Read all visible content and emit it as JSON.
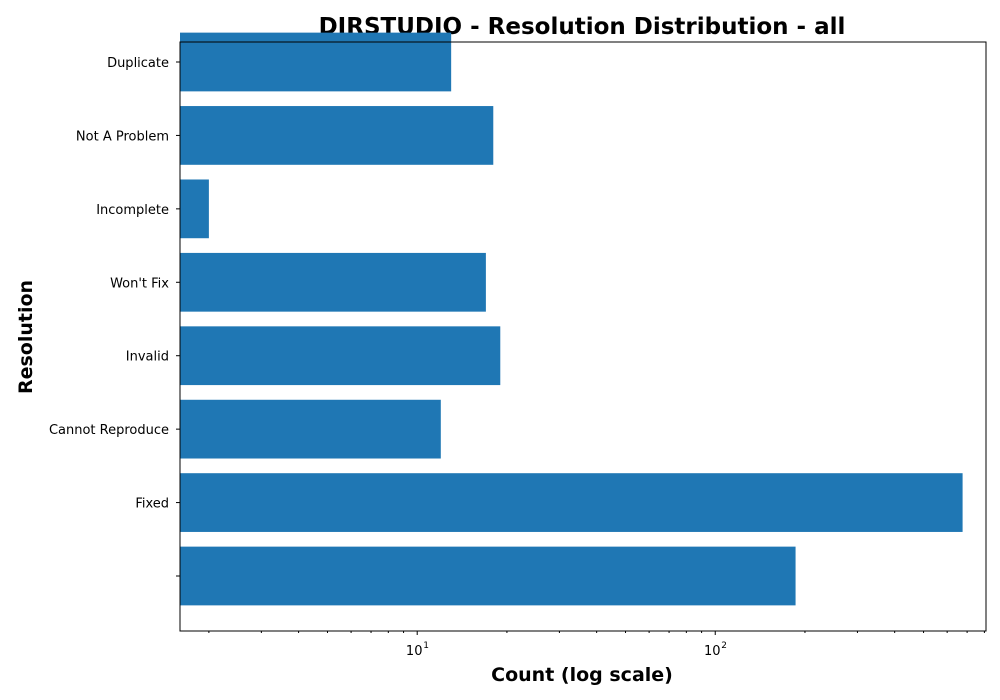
{
  "chart_data": {
    "type": "bar",
    "orientation": "horizontal",
    "title": "DIRSTUDIO - Resolution Distribution - all",
    "xlabel": "Count (log scale)",
    "ylabel": "Resolution",
    "x_scale": "log",
    "xlim": [
      1.6,
      810
    ],
    "grid": false,
    "bar_color": "#1f77b4",
    "categories": [
      "",
      "Fixed",
      "Cannot Reproduce",
      "Invalid",
      "Won't Fix",
      "Incomplete",
      "Not A Problem",
      "Duplicate"
    ],
    "values": [
      186,
      676,
      12,
      19,
      17,
      2,
      18,
      13
    ],
    "x_major_ticks": [
      {
        "value": 10,
        "base": "10",
        "exp": "1"
      },
      {
        "value": 100,
        "base": "10",
        "exp": "2"
      }
    ]
  }
}
